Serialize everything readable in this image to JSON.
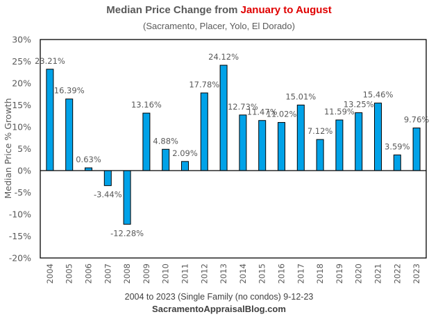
{
  "chart_data": {
    "type": "bar",
    "title_prefix": "Median Price Change from ",
    "title_highlight": "January to August",
    "subtitle": "(Sacramento,  Placer, Yolo, El Dorado)",
    "xlabel": "2004  to 2023  (Single Family (no condos) 9-12-23",
    "source": "SacramentoAppraisalBlog.com",
    "ylabel": "Median Price % Growth",
    "ylim": [
      -20,
      30
    ],
    "yticks": [
      30,
      25,
      20,
      15,
      10,
      5,
      0,
      -5,
      -10,
      -15,
      -20
    ],
    "ytick_labels": [
      "30%",
      "25%",
      "20%",
      "15%",
      "10%",
      "5%",
      "0%",
      "-5%",
      "-10%",
      "-15%",
      "-20%"
    ],
    "grid": false,
    "categories": [
      "2004",
      "2005",
      "2006",
      "2007",
      "2008",
      "2009",
      "2010",
      "2011",
      "2012",
      "2013",
      "2014",
      "2015",
      "2016",
      "2017",
      "2018",
      "2019",
      "2020",
      "2021",
      "2022",
      "2023"
    ],
    "values": [
      23.21,
      16.39,
      0.63,
      -3.44,
      -12.28,
      13.16,
      4.88,
      2.09,
      17.78,
      24.12,
      12.73,
      11.47,
      11.02,
      15.01,
      7.12,
      11.59,
      13.25,
      15.46,
      3.59,
      9.76
    ],
    "data_labels": [
      "23.21%",
      "16.39%",
      "0.63%",
      "-3.44%",
      "-12.28%",
      "13.16%",
      "4.88%",
      "2.09%",
      "17.78%",
      "24.12%",
      "12.73%",
      "11.47%",
      "11.02%",
      "15.01%",
      "7.12%",
      "11.59%",
      "13.25%",
      "15.46%",
      "3.59%",
      "9.76%"
    ],
    "bar_color": "#00a2e8",
    "title_highlight_color": "#e00000"
  }
}
